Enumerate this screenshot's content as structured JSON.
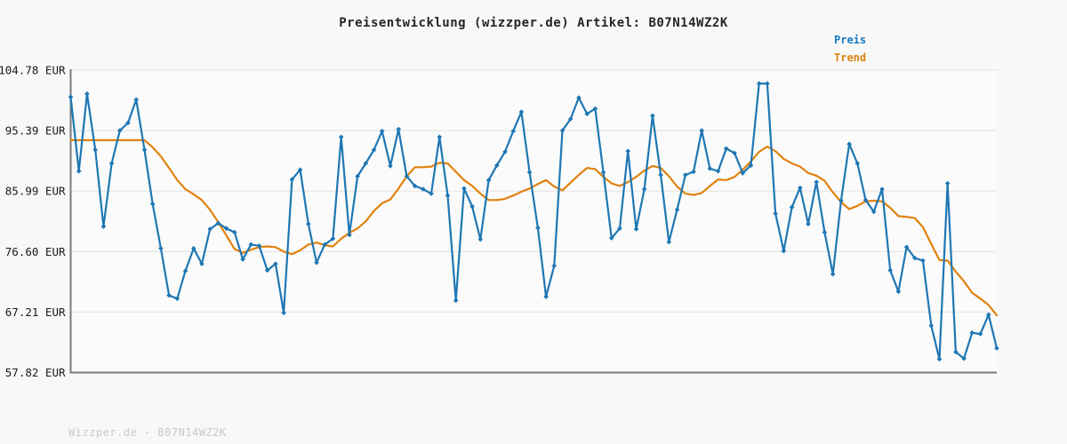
{
  "title": "Preisentwicklung (wizzper.de) Artikel: B07N14WZ2K",
  "watermark": "Wizzper.de - B07N14WZ2K",
  "legend": {
    "price_label": "Preis",
    "trend_label": "Trend"
  },
  "colors": {
    "background": "#f8f8f8",
    "plot_background": "#fbfbfb",
    "grid": "#e7e7e7",
    "spine": "#7a7a7a",
    "title_text": "#262626",
    "tick_text": "#1a1a1a",
    "watermark_text": "#c9c9c9",
    "price_line": "#1f77b4",
    "trend_line": "#e0820e",
    "legend_price_text": "#1878be",
    "legend_trend_text": "#d9820f"
  },
  "chart_data": {
    "type": "line",
    "title": "Preisentwicklung (wizzper.de) Artikel: B07N14WZ2K",
    "unit": "EUR",
    "xlabel": "",
    "ylabel": "",
    "x_axis_tick_labels": "none visible",
    "ylim": [
      57.82,
      104.78
    ],
    "y_ticks": [
      {
        "value": 104.78,
        "label": "104.78 EUR"
      },
      {
        "value": 95.39,
        "label": "95.39 EUR"
      },
      {
        "value": 85.99,
        "label": "85.99 EUR"
      },
      {
        "value": 76.6,
        "label": "76.60 EUR"
      },
      {
        "value": 67.21,
        "label": "67.21 EUR"
      },
      {
        "value": 57.82,
        "label": "57.82 EUR"
      }
    ],
    "grid": "horizontal",
    "legend_position": "top-right",
    "series": [
      {
        "name": "Preis",
        "color": "#1f77b4",
        "marker": "diamond",
        "values": [
          100.6,
          89.1,
          101.1,
          92.4,
          80.5,
          90.3,
          95.4,
          96.6,
          100.2,
          92.4,
          84.0,
          77.1,
          69.8,
          69.3,
          73.6,
          77.1,
          74.7,
          80.1,
          81.0,
          80.2,
          79.6,
          75.4,
          77.7,
          77.5,
          73.7,
          74.7,
          67.1,
          87.8,
          89.3,
          80.9,
          74.9,
          77.7,
          78.6,
          94.4,
          79.2,
          88.3,
          90.3,
          92.4,
          95.3,
          89.9,
          95.6,
          88.3,
          86.8,
          86.3,
          85.6,
          94.4,
          85.3,
          69.0,
          86.4,
          83.6,
          78.5,
          87.7,
          90.0,
          92.1,
          95.3,
          98.3,
          88.9,
          80.3,
          69.6,
          74.4,
          95.4,
          97.2,
          100.5,
          98.0,
          98.8,
          88.9,
          78.7,
          80.2,
          92.2,
          80.1,
          86.3,
          97.7,
          88.5,
          78.1,
          83.1,
          88.5,
          89.0,
          95.4,
          89.5,
          89.1,
          92.6,
          91.9,
          88.8,
          90.0,
          102.7,
          102.7,
          82.5,
          76.7,
          83.5,
          86.5,
          80.9,
          87.4,
          79.6,
          73.1,
          84.5,
          93.3,
          90.3,
          84.6,
          82.8,
          86.3,
          73.7,
          70.4,
          77.3,
          75.6,
          75.2,
          65.1,
          59.9,
          87.2,
          61.0,
          60.0,
          64.0,
          63.8,
          66.8,
          61.6
        ]
      },
      {
        "name": "Trend",
        "color": "#e0820e",
        "marker": "none",
        "values": [
          93.9,
          93.9,
          93.9,
          93.9,
          93.9,
          93.9,
          93.9,
          93.9,
          93.9,
          93.9,
          92.8,
          91.4,
          89.6,
          87.7,
          86.3,
          85.5,
          84.6,
          83.1,
          81.2,
          79.1,
          77.0,
          76.4,
          76.9,
          77.3,
          77.4,
          77.3,
          76.6,
          76.2,
          76.8,
          77.7,
          78.0,
          77.6,
          77.4,
          78.6,
          79.5,
          80.2,
          81.3,
          82.9,
          84.1,
          84.7,
          86.4,
          88.3,
          89.7,
          89.7,
          89.8,
          90.4,
          90.3,
          89.0,
          87.7,
          86.8,
          85.6,
          84.6,
          84.6,
          84.8,
          85.3,
          85.9,
          86.4,
          87.1,
          87.7,
          86.7,
          86.1,
          87.3,
          88.5,
          89.6,
          89.4,
          88.2,
          87.2,
          86.8,
          87.4,
          88.2,
          89.2,
          89.9,
          89.6,
          88.3,
          86.7,
          85.6,
          85.4,
          85.7,
          86.8,
          87.8,
          87.7,
          88.2,
          89.3,
          90.6,
          92.1,
          92.9,
          92.2,
          91.0,
          90.3,
          89.8,
          88.8,
          88.4,
          87.6,
          85.8,
          84.3,
          83.2,
          83.7,
          84.4,
          84.5,
          84.4,
          83.4,
          82.1,
          82.0,
          81.8,
          80.4,
          77.8,
          75.3,
          75.2,
          73.5,
          72.0,
          70.2,
          69.3,
          68.3,
          66.7
        ]
      }
    ]
  }
}
